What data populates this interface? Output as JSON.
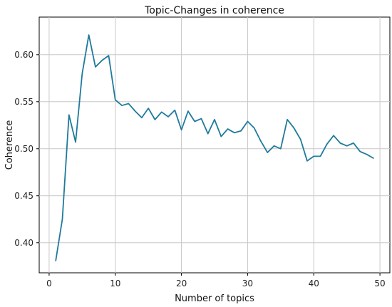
{
  "chart_data": {
    "type": "line",
    "title": "Topic-Changes in coherence",
    "xlabel": "Number of topics",
    "ylabel": "Coherence",
    "xlim": [
      -1.5,
      51.5
    ],
    "ylim": [
      0.368,
      0.64
    ],
    "xticks": [
      0,
      10,
      20,
      30,
      40,
      50
    ],
    "yticks": [
      0.4,
      0.45,
      0.5,
      0.55,
      0.6
    ],
    "xtick_labels": [
      "0",
      "10",
      "20",
      "30",
      "40",
      "50"
    ],
    "ytick_labels": [
      "0.40",
      "0.45",
      "0.50",
      "0.55",
      "0.60"
    ],
    "grid": true,
    "legend": "none",
    "line_color": "#1f7a9c",
    "series": [
      {
        "x": [
          1,
          2,
          3,
          4,
          5,
          6,
          7,
          8,
          9,
          10,
          11,
          12,
          13,
          14,
          15,
          16,
          17,
          18,
          19,
          20,
          21,
          22,
          23,
          24,
          25,
          26,
          27,
          28,
          29,
          30,
          31,
          32,
          33,
          34,
          35,
          36,
          37,
          38,
          39,
          40,
          41,
          42,
          43,
          44,
          45,
          46,
          47,
          48,
          49
        ],
        "values": [
          0.381,
          0.425,
          0.536,
          0.507,
          0.58,
          0.621,
          0.587,
          0.594,
          0.599,
          0.552,
          0.546,
          0.548,
          0.54,
          0.533,
          0.543,
          0.531,
          0.539,
          0.534,
          0.541,
          0.52,
          0.54,
          0.529,
          0.532,
          0.516,
          0.531,
          0.513,
          0.521,
          0.517,
          0.519,
          0.529,
          0.522,
          0.508,
          0.496,
          0.503,
          0.5,
          0.531,
          0.522,
          0.51,
          0.487,
          0.492,
          0.492,
          0.505,
          0.514,
          0.506,
          0.503,
          0.506,
          0.497,
          0.494,
          0.49
        ]
      }
    ]
  }
}
